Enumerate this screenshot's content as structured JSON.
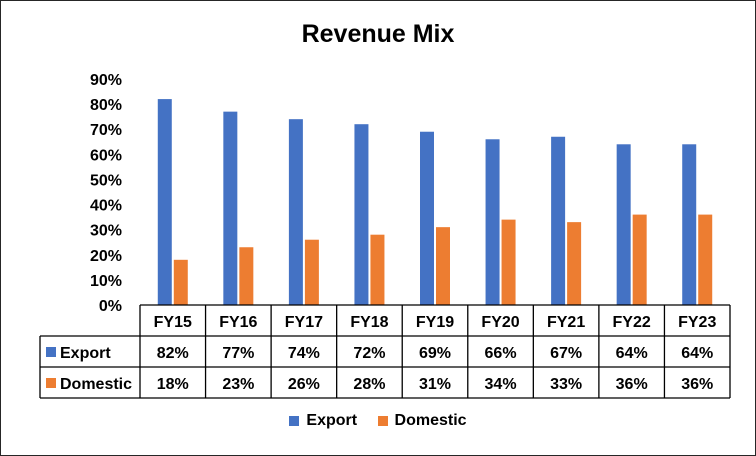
{
  "chart_data": {
    "type": "bar",
    "title": "Revenue Mix",
    "categories": [
      "FY15",
      "FY16",
      "FY17",
      "FY18",
      "FY19",
      "FY20",
      "FY21",
      "FY22",
      "FY23"
    ],
    "series": [
      {
        "name": "Export",
        "values": [
          82,
          77,
          74,
          72,
          69,
          66,
          67,
          64,
          64
        ],
        "labels": [
          "82%",
          "77%",
          "74%",
          "72%",
          "69%",
          "66%",
          "67%",
          "64%",
          "64%"
        ],
        "color": "#4472c4"
      },
      {
        "name": "Domestic",
        "values": [
          18,
          23,
          26,
          28,
          31,
          34,
          33,
          36,
          36
        ],
        "labels": [
          "18%",
          "23%",
          "26%",
          "28%",
          "31%",
          "34%",
          "33%",
          "36%",
          "36%"
        ],
        "color": "#ed7d31"
      }
    ],
    "ylim": [
      0,
      90
    ],
    "yticks": [
      "0%",
      "10%",
      "20%",
      "30%",
      "40%",
      "50%",
      "60%",
      "70%",
      "80%",
      "90%"
    ],
    "grid": false,
    "data_table": true,
    "legend_position": "bottom"
  }
}
